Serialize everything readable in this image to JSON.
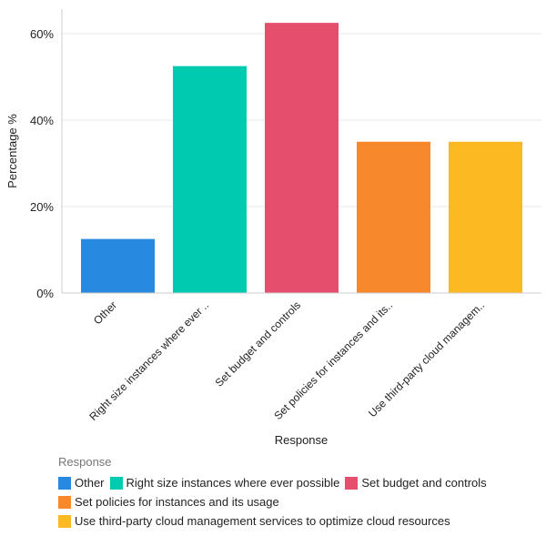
{
  "chart_data": {
    "type": "bar",
    "xlabel": "Response",
    "ylabel": "Percentage %",
    "ylim": [
      0,
      65
    ],
    "yticks": [
      "0%",
      "20%",
      "40%",
      "60%"
    ],
    "ytick_values": [
      0,
      20,
      40,
      60
    ],
    "grid": true,
    "categories": [
      "Other",
      "Right size instances where ever possible",
      "Set budget and controls",
      "Set policies for instances and its usage",
      "Use third-party cloud management services to optimize cloud resources"
    ],
    "tick_labels": [
      "Other",
      "Right size instances where ever ..",
      "Set budget and controls",
      "Set policies for instances and its..",
      "Use third-party cloud managem.."
    ],
    "values": [
      12.5,
      52.5,
      62.5,
      35,
      35
    ],
    "colors": [
      "#2889e0",
      "#00cbb1",
      "#e64e6e",
      "#f7882b",
      "#fdb921"
    ],
    "legend": {
      "title": "Response",
      "placement": "bottom-left",
      "items": [
        "Other",
        "Right size instances where ever possible",
        "Set budget and controls",
        "Set policies for instances and its usage",
        "Use third-party cloud management services to optimize cloud resources"
      ]
    }
  }
}
